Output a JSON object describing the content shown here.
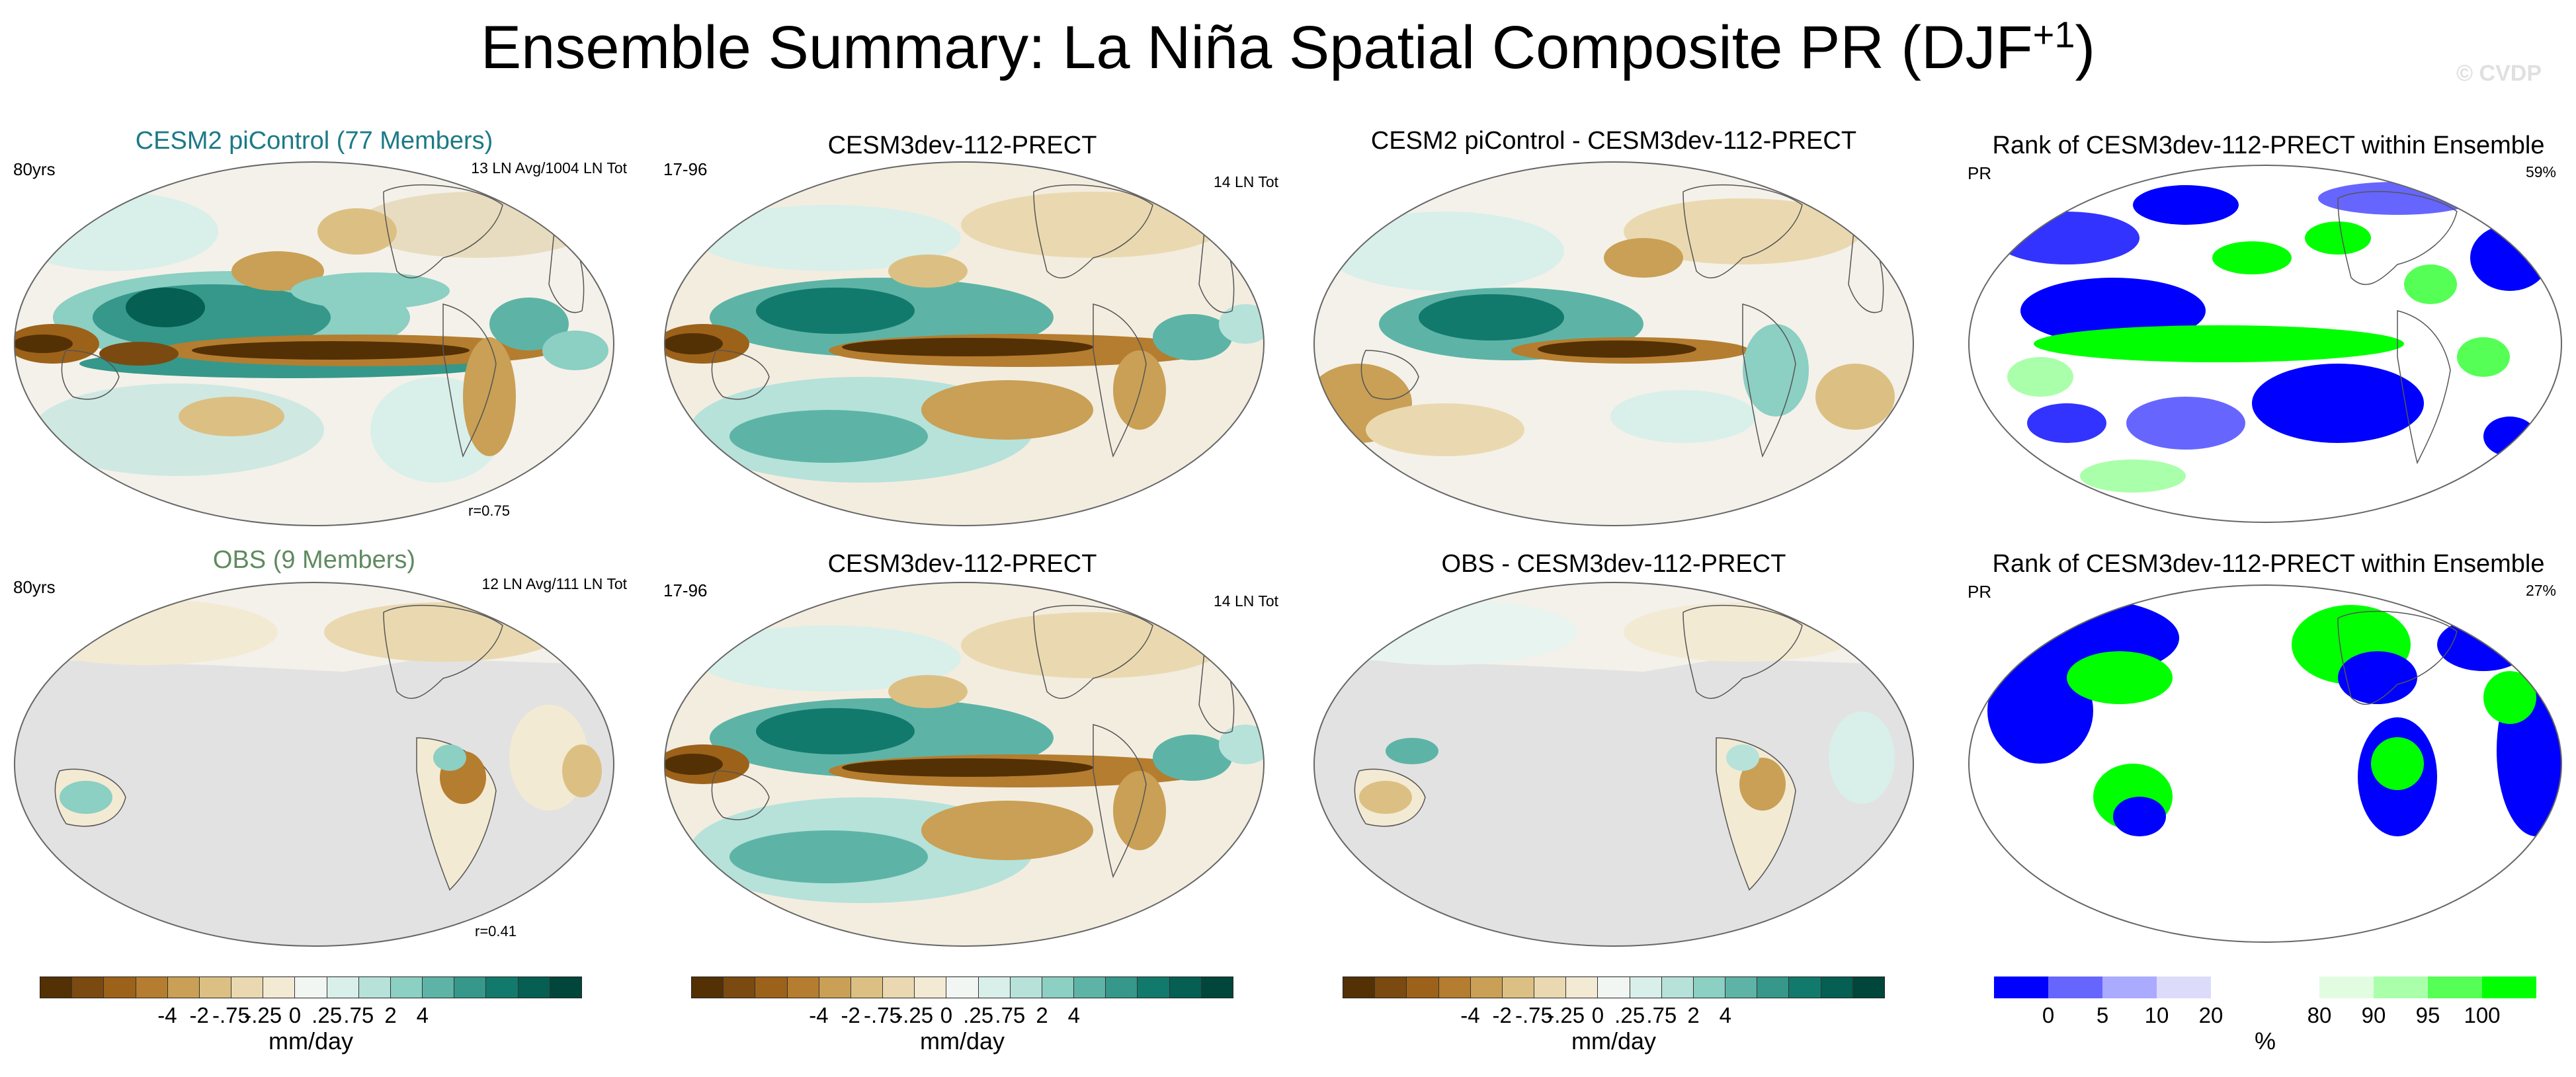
{
  "title": {
    "main": "Ensemble Summary: La Niña Spatial Composite PR (DJF",
    "superscript": "+1",
    "close": ")"
  },
  "watermark": "© CVDP",
  "colors": {
    "brown_dark": "#5a3a0e",
    "teal_dark": "#0b4a3e",
    "land_gray": "#e2e2e2",
    "rank_low": "#0000ff",
    "rank_high": "#00ff00",
    "title_teal": "#1c7a86",
    "title_green": "#5f8a5f"
  },
  "panels": [
    {
      "title": "CESM2 piControl (77 Members)",
      "left": "80yrs",
      "right": "13 LN Avg/1004 LN Tot",
      "corr": "r=0.75"
    },
    {
      "title": "CESM3dev-112-PRECT",
      "left": "17-96",
      "right": "14 LN Tot"
    },
    {
      "title": "CESM2 piControl - CESM3dev-112-PRECT"
    },
    {
      "title": "Rank of CESM3dev-112-PRECT within Ensemble",
      "left": "PR",
      "right": "59%"
    },
    {
      "title": "OBS (9 Members)",
      "left": "80yrs",
      "right": "12 LN Avg/111 LN Tot",
      "corr": "r=0.41"
    },
    {
      "title": "CESM3dev-112-PRECT",
      "left": "17-96",
      "right": "14 LN Tot"
    },
    {
      "title": "OBS - CESM3dev-112-PRECT"
    },
    {
      "title": "Rank of CESM3dev-112-PRECT within Ensemble",
      "left": "PR",
      "right": "27%"
    }
  ],
  "colorbars": {
    "precip": {
      "ticks": [
        "-4",
        "-2",
        "-.75",
        "-.25",
        "0",
        ".25",
        ".75",
        "2",
        "4"
      ],
      "label": "mm/day",
      "colors": [
        "#543005",
        "#7a4a10",
        "#9c6219",
        "#b57d2f",
        "#c9a055",
        "#dcc083",
        "#ead9b0",
        "#f3ead4",
        "#f2f6f3",
        "#d9efea",
        "#b6e2da",
        "#8ccfc3",
        "#5db4a6",
        "#35988a",
        "#127a6c",
        "#055f52",
        "#01463a"
      ]
    },
    "rank": {
      "ticks": [
        "0",
        "5",
        "10",
        "20",
        "80",
        "90",
        "95",
        "100"
      ],
      "label": "%",
      "colors": [
        "#0000ff",
        "#6666ff",
        "#aaaaff",
        "#dcdcfa",
        "#ffffff",
        "#ffffff",
        "#e2fce2",
        "#aaffaa",
        "#55ff55",
        "#00ff00"
      ]
    }
  }
}
